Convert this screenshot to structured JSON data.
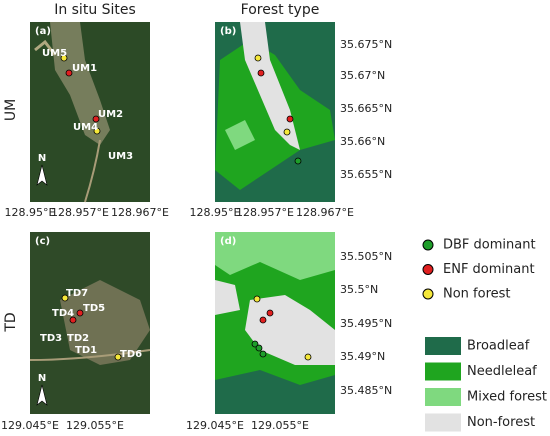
{
  "column_titles": [
    "In situ Sites",
    "Forest type"
  ],
  "row_labels": [
    "UM",
    "TD"
  ],
  "panels": [
    {
      "letter": "(a)",
      "sites": [
        "UM5",
        "UM1",
        "UM2",
        "UM4",
        "UM3"
      ],
      "north": "N"
    },
    {
      "letter": "(b)"
    },
    {
      "letter": "(c)",
      "sites": [
        "TD7",
        "TD5",
        "TD4",
        "TD3",
        "TD2",
        "TD1",
        "TD6"
      ],
      "north": "N"
    },
    {
      "letter": "(d)"
    }
  ],
  "x_ticks": {
    "UM": [
      "128.95°E",
      "128.957°E",
      "128.967°E"
    ],
    "TD": [
      "129.045°E",
      "129.055°E"
    ]
  },
  "y_ticks": {
    "UM": [
      "35.675°N",
      "35.67°N",
      "35.665°N",
      "35.66°N",
      "35.655°N"
    ],
    "TD": [
      "35.505°N",
      "35.5°N",
      "35.495°N",
      "35.49°N",
      "35.485°N"
    ]
  },
  "site_legend": [
    {
      "label": "DBF dominant",
      "color": "#1e9e2a"
    },
    {
      "label": "ENF dominant",
      "color": "#e02020"
    },
    {
      "label": "Non forest",
      "color": "#f5e83a"
    }
  ],
  "forest_legend": [
    {
      "label": "Broadleaf",
      "color": "#1f6b4a"
    },
    {
      "label": "Needleleaf",
      "color": "#1fa51f"
    },
    {
      "label": "Mixed forest",
      "color": "#7fd97f"
    },
    {
      "label": "Non-forest",
      "color": "#e2e2e2"
    }
  ]
}
